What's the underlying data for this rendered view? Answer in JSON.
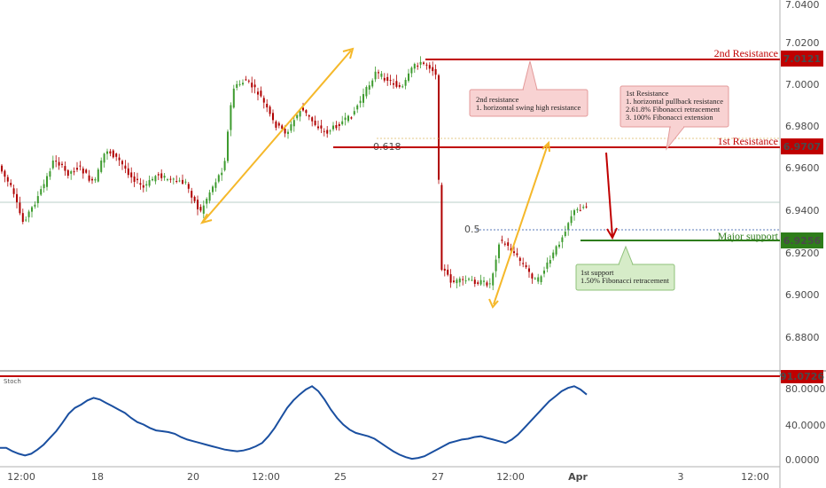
{
  "chart_data": {
    "type": "candlestick",
    "instrument_scale": {
      "price_ticks": [
        "7.0400",
        "7.0200",
        "7.0000",
        "6.9800",
        "6.9600",
        "6.9400",
        "6.9200",
        "6.9000",
        "6.8800"
      ],
      "price_range": [
        6.868,
        7.046
      ],
      "x_ticks": [
        "12:00",
        "18",
        "20",
        "12:00",
        "25",
        "27",
        "12:00",
        "Apr",
        "3",
        "12:00"
      ]
    },
    "levels": {
      "second_resistance": {
        "label": "2nd Resistance",
        "value": "7.0121",
        "price": 7.0121,
        "color": "#c00000"
      },
      "first_resistance": {
        "label": "1st Resistance",
        "value": "6.9707",
        "price": 6.9707,
        "color": "#c00000"
      },
      "major_support": {
        "label": "Major support",
        "value": "6.9256",
        "price": 6.9256,
        "color": "#2e7d1a"
      }
    },
    "fib_labels": {
      "fib_618": "0.618",
      "fib_05": "0.5"
    },
    "callouts": {
      "second_resistance": {
        "lines": [
          "2nd resistance",
          "1. horizontal swing high resistance"
        ]
      },
      "first_resistance": {
        "lines": [
          "1st Resistance",
          "1. horizontal pullback resistance",
          "2.61.8% Fibonacci retracement",
          "3. 100% Fibonacci extension"
        ]
      },
      "first_support": {
        "lines": [
          "1st support",
          "1.50% Fibonacci retracement"
        ]
      }
    },
    "stoch": {
      "label": "Stoch",
      "ticks": [
        "80.0000",
        "40.0000",
        "0.0000"
      ],
      "range": [
        0,
        100
      ],
      "level_value": "91.0726",
      "level": 91.0726,
      "values": [
        14,
        14,
        10,
        7,
        5,
        7,
        12,
        18,
        26,
        34,
        44,
        55,
        62,
        66,
        71,
        74,
        72,
        68,
        64,
        60,
        56,
        50,
        45,
        42,
        38,
        35,
        34,
        33,
        31,
        27,
        24,
        22,
        20,
        18,
        16,
        14,
        12,
        11,
        10,
        11,
        13,
        16,
        20,
        28,
        38,
        50,
        62,
        71,
        78,
        84,
        88,
        82,
        72,
        60,
        50,
        42,
        36,
        32,
        30,
        28,
        25,
        20,
        15,
        10,
        6,
        3,
        1,
        2,
        4,
        8,
        12,
        16,
        20,
        22,
        24,
        25,
        27,
        28,
        26,
        24,
        22,
        20,
        24,
        30,
        38,
        46,
        54,
        62,
        70,
        76,
        82,
        86,
        88,
        84,
        78
      ]
    }
  },
  "header": {
    "top_tick": "7.0400"
  }
}
